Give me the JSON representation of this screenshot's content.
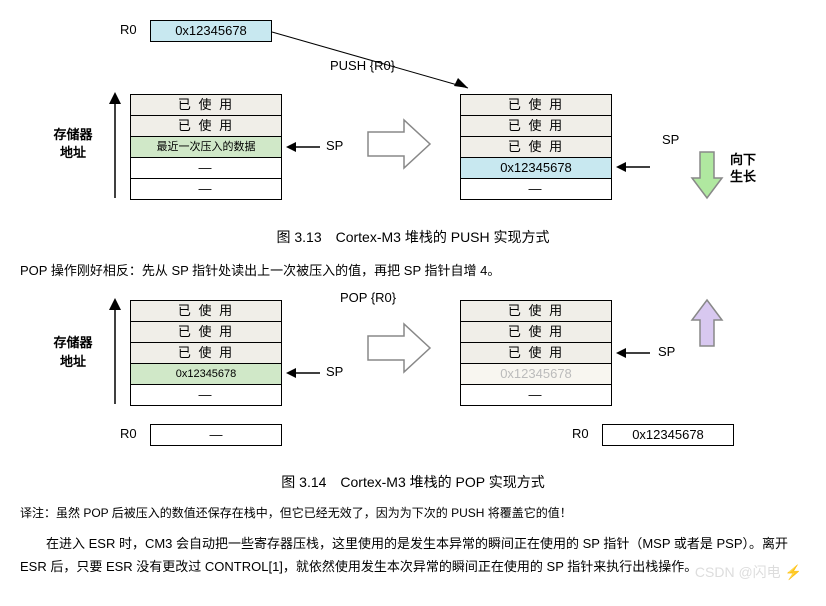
{
  "fig1": {
    "r0_label": "R0",
    "r0_value": "0x12345678",
    "op_label": "PUSH  {R0}",
    "side_label_line1": "存储器",
    "side_label_line2": "地址",
    "sp_label": "SP",
    "grow_line1": "向下",
    "grow_line2": "生长",
    "left_cells": [
      {
        "text": "已 使 用",
        "cls": "used"
      },
      {
        "text": "已 使 用",
        "cls": "used"
      },
      {
        "text": "最近一次压入的数据",
        "cls": "recent"
      },
      {
        "text": "—",
        "cls": "empty"
      },
      {
        "text": "—",
        "cls": "empty"
      }
    ],
    "right_cells": [
      {
        "text": "已 使 用",
        "cls": "used"
      },
      {
        "text": "已 使 用",
        "cls": "used"
      },
      {
        "text": "已 使 用",
        "cls": "used"
      },
      {
        "text": "0x12345678",
        "cls": "blue"
      },
      {
        "text": "—",
        "cls": "empty"
      }
    ],
    "caption": "图 3.13　Cortex-M3 堆栈的 PUSH 实现方式",
    "colors": {
      "up_arrow": "#000000",
      "big_arrow_fill": "#ffffff",
      "big_arrow_stroke": "#888888",
      "grow_arrow_fill": "#b0e8a0",
      "grow_arrow_stroke": "#888888",
      "sp_arrow": "#000000",
      "push_line": "#000000"
    }
  },
  "intro_pop": "POP 操作刚好相反：先从 SP 指针处读出上一次被压入的值，再把 SP 指针自增 4。",
  "fig2": {
    "op_label": "POP  {R0}",
    "side_label_line1": "存储器",
    "side_label_line2": "地址",
    "sp_label_left": "SP",
    "sp_label_right": "SP",
    "r0_label_left": "R0",
    "r0_value_left": "—",
    "r0_label_right": "R0",
    "r0_value_right": "0x12345678",
    "left_cells": [
      {
        "text": "已 使 用",
        "cls": "used"
      },
      {
        "text": "已 使 用",
        "cls": "used"
      },
      {
        "text": "已 使 用",
        "cls": "used"
      },
      {
        "text": "0x12345678",
        "cls": "recent"
      },
      {
        "text": "—",
        "cls": "empty"
      }
    ],
    "right_cells": [
      {
        "text": "已 使 用",
        "cls": "used"
      },
      {
        "text": "已 使 用",
        "cls": "used"
      },
      {
        "text": "已 使 用",
        "cls": "used"
      },
      {
        "text": "0x12345678",
        "cls": "faded"
      },
      {
        "text": "—",
        "cls": "empty"
      }
    ],
    "caption": "图 3.14　Cortex-M3 堆栈的 POP 实现方式",
    "colors": {
      "up_arrow_fill": "#d8c8f0",
      "up_arrow_stroke": "#888888"
    }
  },
  "note1": "译注：虽然 POP 后被压入的数值还保存在栈中，但它已经无效了，因为为下次的 PUSH 将覆盖它的值！",
  "para1": "在进入 ESR 时，CM3 会自动把一些寄存器压栈，这里使用的是发生本异常的瞬间正在使用的 SP 指针（MSP 或者是 PSP）。离开 ESR 后，只要 ESR 没有更改过 CONTROL[1]，就依然使用发生本次异常的瞬间正在使用的 SP 指针来执行出栈操作。",
  "watermark": "CSDN @闪电 ⚡"
}
